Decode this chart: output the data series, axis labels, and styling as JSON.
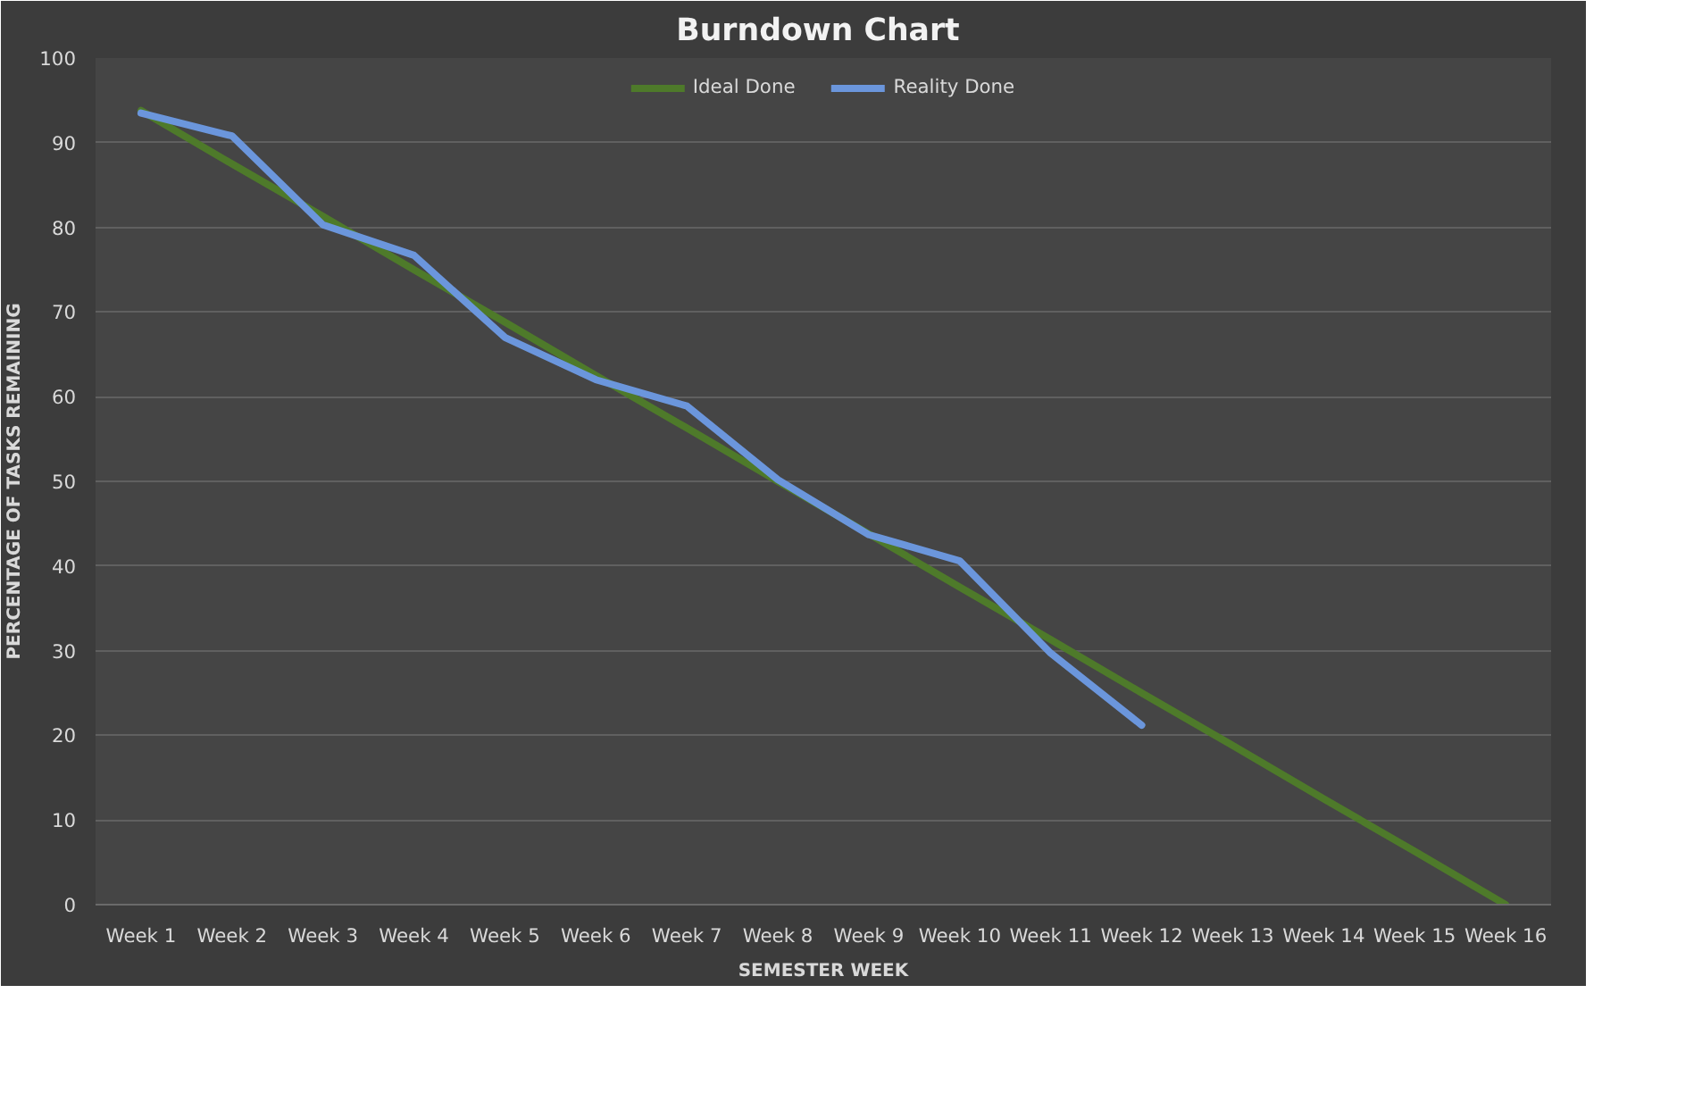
{
  "chart_data": {
    "type": "line",
    "title": "Burndown  Chart",
    "xlabel": "SEMESTER WEEK",
    "ylabel": "PERCENTAGE OF TASKS REMAINING",
    "categories": [
      "Week 1",
      "Week 2",
      "Week 3",
      "Week 4",
      "Week 5",
      "Week 6",
      "Week 7",
      "Week 8",
      "Week 9",
      "Week 10",
      "Week 11",
      "Week 12",
      "Week 13",
      "Week 14",
      "Week 15",
      "Week 16"
    ],
    "series": [
      {
        "name": "Ideal Done",
        "color": "#4e7a2a",
        "values": [
          93.8,
          87.5,
          81.3,
          75,
          68.8,
          62.5,
          56.3,
          50,
          43.8,
          37.5,
          31.3,
          25,
          18.8,
          12.5,
          6.3,
          0
        ]
      },
      {
        "name": "Reality Done",
        "color": "#6b96dc",
        "values": [
          93.5,
          90.8,
          80.3,
          76.7,
          67,
          62,
          58.9,
          50.2,
          43.7,
          40.6,
          29.7,
          21.2,
          null,
          null,
          null,
          null
        ]
      }
    ],
    "ylim": [
      0,
      100
    ],
    "yticks": [
      0,
      10,
      20,
      30,
      40,
      50,
      60,
      70,
      80,
      90,
      100
    ],
    "grid": "y",
    "legend": "top",
    "marker": "none",
    "line_style": "solid"
  }
}
